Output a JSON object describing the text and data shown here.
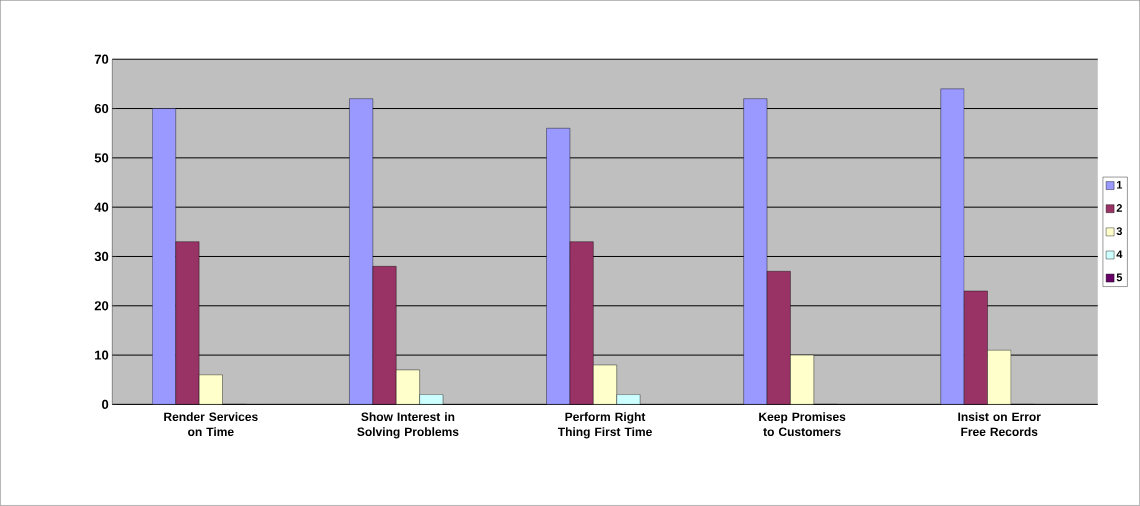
{
  "chart_data": {
    "type": "bar",
    "categories": [
      "Render Services on Time",
      "Show Interest in Solving Problems",
      "Perform Right Thing First Time",
      "Keep Promises to Customers",
      "Insist on Error Free Records"
    ],
    "series": [
      {
        "name": "1",
        "color": "#9999ff",
        "values": [
          60,
          62,
          56,
          62,
          64
        ]
      },
      {
        "name": "2",
        "color": "#993366",
        "values": [
          33,
          28,
          33,
          27,
          23
        ]
      },
      {
        "name": "3",
        "color": "#ffffcc",
        "values": [
          6,
          7,
          8,
          10,
          11
        ]
      },
      {
        "name": "4",
        "color": "#ccffff",
        "values": [
          0,
          2,
          2,
          0,
          0
        ]
      },
      {
        "name": "5",
        "color": "#660066",
        "values": [
          0,
          0,
          0,
          0,
          0
        ]
      }
    ],
    "ylim": [
      0,
      70
    ],
    "yticks": [
      0,
      10,
      20,
      30,
      40,
      50,
      60,
      70
    ],
    "grid": "y",
    "legend": "right"
  }
}
